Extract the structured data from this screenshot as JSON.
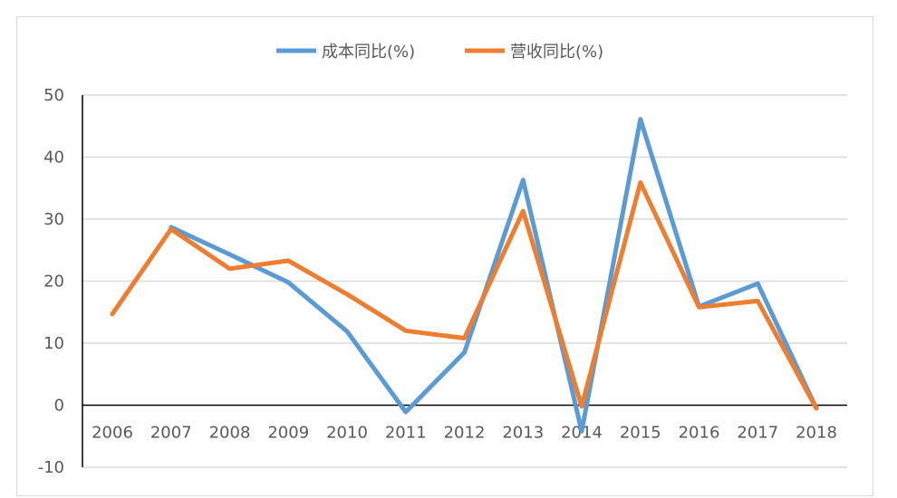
{
  "chart_data": {
    "type": "line",
    "title": "",
    "xlabel": "",
    "ylabel": "",
    "categories": [
      "2006",
      "2007",
      "2008",
      "2009",
      "2010",
      "2011",
      "2012",
      "2013",
      "2014",
      "2015",
      "2016",
      "2017",
      "2018"
    ],
    "series": [
      {
        "name": "成本同比(%)",
        "color": "#5b9bd5",
        "values": [
          null,
          28.7,
          24.3,
          19.8,
          11.9,
          -1.1,
          8.5,
          36.3,
          -4.2,
          46.1,
          15.9,
          19.6,
          -0.5
        ]
      },
      {
        "name": "营收同比(%)",
        "color": "#ed7d31",
        "values": [
          14.7,
          28.4,
          22.0,
          23.3,
          17.9,
          12.0,
          10.8,
          31.3,
          -0.2,
          35.9,
          15.8,
          16.8,
          -0.5
        ]
      }
    ],
    "ylim": [
      -10,
      50
    ],
    "yticks": [
      -10,
      0,
      10,
      20,
      30,
      40,
      50
    ],
    "grid": true,
    "legend": "top-center"
  }
}
